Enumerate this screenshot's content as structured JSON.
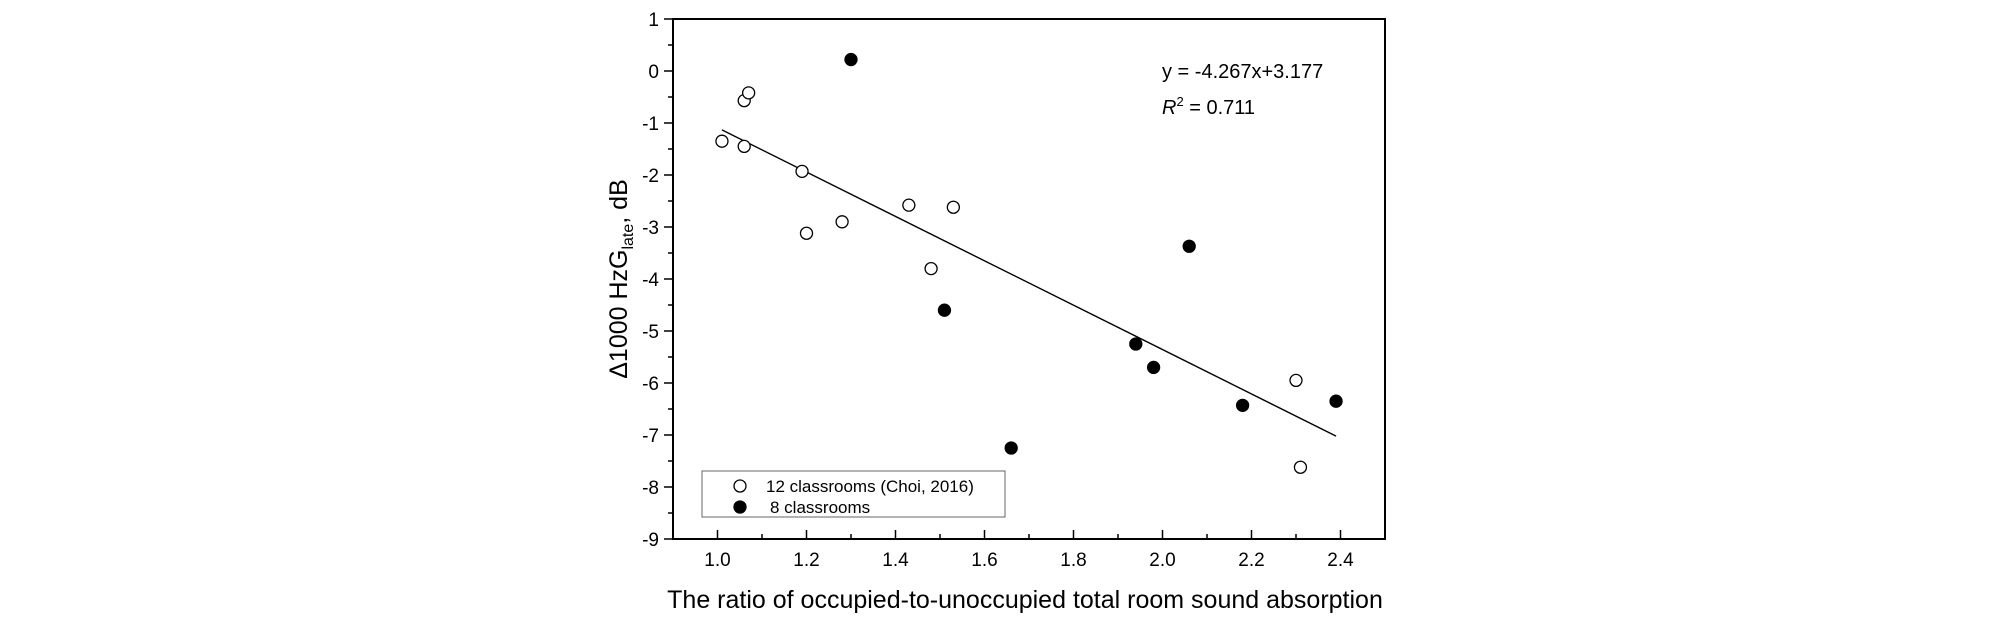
{
  "chart_data": {
    "type": "scatter",
    "xlabel": "The ratio of occupied-to-unoccupied total room sound absorption",
    "ylabel_main": "Δ1000 HzG",
    "ylabel_sub": "late",
    "ylabel_suffix": ", dB",
    "xlim": [
      0.9,
      2.5
    ],
    "ylim": [
      -9,
      1
    ],
    "x_ticks": [
      "1.0",
      "1.2",
      "1.4",
      "1.6",
      "1.8",
      "2.0",
      "2.2",
      "2.4"
    ],
    "y_ticks": [
      "1",
      "0",
      "-1",
      "-2",
      "-3",
      "-4",
      "-5",
      "-6",
      "-7",
      "-8",
      "-9"
    ],
    "series": [
      {
        "name": "12 classrooms (Choi, 2016)",
        "marker": "open-circle",
        "x": [
          1.01,
          1.06,
          1.06,
          1.07,
          1.19,
          1.2,
          1.28,
          1.43,
          1.48,
          1.53,
          2.3,
          2.31
        ],
        "y": [
          -1.35,
          -1.45,
          -0.57,
          -0.42,
          -1.93,
          -3.12,
          -2.9,
          -2.58,
          -3.8,
          -2.62,
          -5.95,
          -7.62
        ]
      },
      {
        "name": "8 classrooms",
        "marker": "filled-circle",
        "x": [
          1.3,
          1.51,
          1.66,
          1.94,
          1.98,
          2.06,
          2.18,
          2.39
        ],
        "y": [
          0.22,
          -4.6,
          -7.25,
          -5.25,
          -5.7,
          -3.37,
          -6.43,
          -6.35
        ]
      }
    ],
    "fit_line": {
      "x": [
        1.01,
        2.39
      ],
      "slope": -4.267,
      "intercept": 3.177
    },
    "annotations": {
      "equation": "y = -4.267x+3.177",
      "r2_label": "R",
      "r2_exp": "2",
      "r2_value": " = 0.711"
    },
    "legend_position": "bottom-left",
    "grid": false
  }
}
